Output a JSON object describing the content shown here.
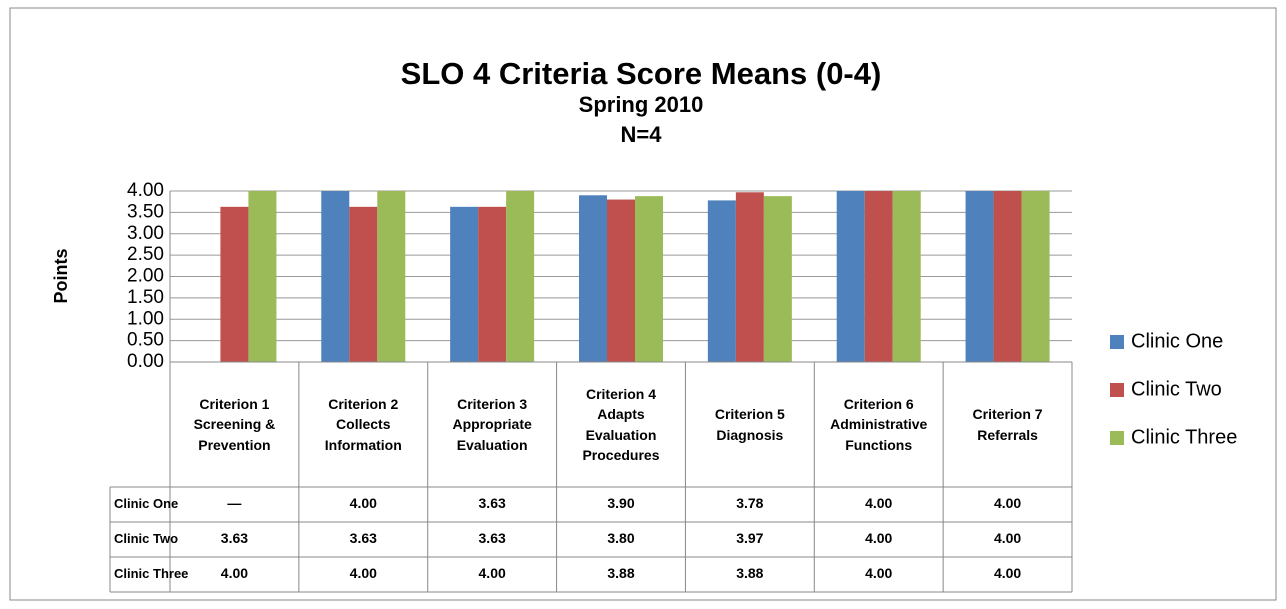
{
  "chart_data": {
    "type": "bar",
    "title": "SLO 4 Criteria Score Means (0-4)",
    "subtitle": "Spring 2010",
    "note": "N=4",
    "y_label": "Points",
    "categories": [
      "Criterion 1 Screening & Prevention",
      "Criterion 2 Collects Information",
      "Criterion 3 Appropriate Evaluation",
      "Criterion 4 Adapts Evaluation Procedures",
      "Criterion 5 Diagnosis",
      "Criterion 6 Administrative Functions",
      "Criterion 7 Referrals"
    ],
    "series": [
      {
        "name": "Clinic One",
        "color": "#4f81bd",
        "values": [
          null,
          4.0,
          3.63,
          3.9,
          3.78,
          4.0,
          4.0
        ],
        "value_labels": [
          "—",
          "4.00",
          "3.63",
          "3.90",
          "3.78",
          "4.00",
          "4.00"
        ]
      },
      {
        "name": "Clinic Two",
        "color": "#c0504d",
        "values": [
          3.63,
          3.63,
          3.63,
          3.8,
          3.97,
          4.0,
          4.0
        ],
        "value_labels": [
          "3.63",
          "3.63",
          "3.63",
          "3.80",
          "3.97",
          "4.00",
          "4.00"
        ]
      },
      {
        "name": "Clinic Three",
        "color": "#9bbb59",
        "values": [
          4.0,
          4.0,
          4.0,
          3.88,
          3.88,
          4.0,
          4.0
        ],
        "value_labels": [
          "4.00",
          "4.00",
          "4.00",
          "3.88",
          "3.88",
          "4.00",
          "4.00"
        ]
      }
    ],
    "ylim": [
      0,
      4
    ],
    "yticks": [
      {
        "value": 0,
        "label": "0.00"
      },
      {
        "value": 0.5,
        "label": "0.50"
      },
      {
        "value": 1,
        "label": "1.00"
      },
      {
        "value": 1.5,
        "label": "1.50"
      },
      {
        "value": 2,
        "label": "2.00"
      },
      {
        "value": 2.5,
        "label": "2.50"
      },
      {
        "value": 3,
        "label": "3.00"
      },
      {
        "value": 3.5,
        "label": "3.50"
      },
      {
        "value": 4,
        "label": "4.00"
      }
    ],
    "grid": true,
    "legend": "right"
  }
}
